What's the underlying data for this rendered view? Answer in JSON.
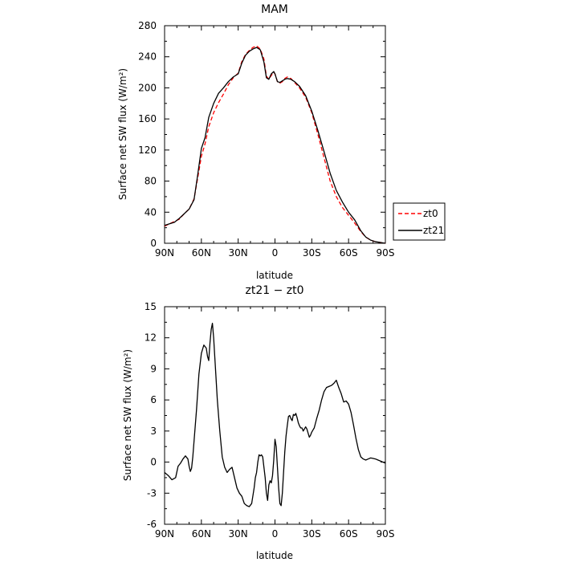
{
  "chart_data": [
    {
      "type": "line",
      "title": "MAM",
      "xlabel": "latitude",
      "ylabel": "Surface net SW flux (W/m²)",
      "xlim": [
        90,
        -90
      ],
      "ylim": [
        0,
        280
      ],
      "x_ticks": [
        90,
        60,
        30,
        0,
        -30,
        -60,
        -90
      ],
      "x_tick_labels": [
        "90N",
        "60N",
        "30N",
        "0",
        "30S",
        "60S",
        "90S"
      ],
      "y_ticks": [
        0,
        40,
        80,
        120,
        160,
        200,
        240,
        280
      ],
      "legend": {
        "position": "right"
      },
      "series": [
        {
          "name": "zt0",
          "color": "#ff0000",
          "dash": "dashed",
          "x": [
            90,
            86,
            82,
            78,
            74,
            70,
            66,
            63,
            60,
            57,
            54,
            50,
            46,
            42,
            38,
            34,
            30,
            27,
            24,
            21,
            18,
            15,
            12,
            9,
            7,
            5,
            3,
            1,
            0,
            -2,
            -4,
            -6,
            -8,
            -10,
            -13,
            -16,
            -20,
            -25,
            -30,
            -35,
            -40,
            -45,
            -50,
            -55,
            -60,
            -65,
            -70,
            -74,
            -78,
            -82,
            -86,
            -90
          ],
          "y": [
            22,
            25,
            28,
            31,
            38,
            44,
            57,
            84,
            112,
            128,
            150,
            168,
            181,
            192,
            204,
            213,
            219,
            234,
            243,
            248,
            252,
            254,
            250,
            237,
            215,
            211,
            216,
            220,
            218,
            208,
            206,
            208,
            212,
            214,
            212,
            207,
            200,
            188,
            168,
            140,
            110,
            80,
            60,
            46,
            36,
            26,
            15,
            8,
            4,
            2,
            1,
            0
          ]
        },
        {
          "name": "zt21",
          "color": "#000000",
          "dash": "solid",
          "x": [
            90,
            86,
            82,
            78,
            74,
            70,
            66,
            63,
            60,
            57,
            54,
            50,
            46,
            42,
            38,
            34,
            30,
            27,
            24,
            21,
            18,
            15,
            12,
            9,
            7,
            5,
            3,
            1,
            0,
            -2,
            -4,
            -6,
            -8,
            -10,
            -13,
            -16,
            -20,
            -25,
            -30,
            -35,
            -40,
            -45,
            -50,
            -55,
            -60,
            -65,
            -70,
            -74,
            -78,
            -82,
            -86,
            -90
          ],
          "y": [
            23,
            25,
            27,
            32,
            38,
            44,
            56,
            88,
            122,
            136,
            162,
            180,
            193,
            200,
            208,
            214,
            218,
            232,
            242,
            247,
            250,
            252,
            249,
            233,
            213,
            211,
            218,
            221,
            218,
            208,
            207,
            209,
            211,
            212,
            211,
            208,
            202,
            190,
            170,
            145,
            118,
            90,
            68,
            53,
            40,
            30,
            16,
            8,
            4,
            2,
            1,
            0
          ]
        }
      ]
    },
    {
      "type": "line",
      "title": "zt21 − zt0",
      "xlabel": "latitude",
      "ylabel": "Surface net SW flux (W/m²)",
      "xlim": [
        90,
        -90
      ],
      "ylim": [
        -6,
        15
      ],
      "x_ticks": [
        90,
        60,
        30,
        0,
        -30,
        -60,
        -90
      ],
      "x_tick_labels": [
        "90N",
        "60N",
        "30N",
        "0",
        "30S",
        "60S",
        "90S"
      ],
      "y_ticks": [
        -6,
        -3,
        0,
        3,
        6,
        9,
        12,
        15
      ],
      "series": [
        {
          "color": "#000000",
          "dash": "solid",
          "x": [
            90,
            87,
            84,
            81,
            79,
            77,
            75,
            73,
            71,
            70,
            69,
            68,
            67,
            66,
            64,
            62,
            60,
            58,
            56,
            55,
            54,
            53,
            52,
            51,
            50,
            49,
            48,
            47,
            45,
            43,
            41,
            39,
            37,
            35,
            33,
            31,
            29,
            27,
            25,
            23,
            21,
            19,
            17,
            16,
            15,
            14,
            13,
            12,
            11,
            10,
            9,
            8,
            7,
            6,
            5,
            4,
            3,
            2,
            1,
            0,
            -1,
            -2,
            -3,
            -4,
            -5,
            -6,
            -7,
            -8,
            -9,
            -10,
            -11,
            -12,
            -13,
            -14,
            -15,
            -16,
            -17,
            -18,
            -19,
            -20,
            -21,
            -22,
            -23,
            -24,
            -25,
            -26,
            -27,
            -28,
            -29,
            -30,
            -31,
            -32,
            -34,
            -36,
            -38,
            -40,
            -42,
            -44,
            -46,
            -48,
            -50,
            -52,
            -54,
            -56,
            -58,
            -60,
            -62,
            -64,
            -66,
            -68,
            -70,
            -72,
            -74,
            -76,
            -78,
            -80,
            -82,
            -84,
            -86,
            -88,
            -90
          ],
          "y": [
            -1.0,
            -1.3,
            -1.7,
            -1.5,
            -0.4,
            -0.1,
            0.3,
            0.6,
            0.3,
            -0.4,
            -0.9,
            -0.6,
            0.5,
            2.0,
            5.0,
            8.5,
            10.5,
            11.3,
            11.0,
            10.2,
            9.8,
            11.5,
            12.8,
            13.4,
            12.0,
            10.0,
            8.0,
            6.0,
            3.0,
            0.5,
            -0.5,
            -1.0,
            -0.7,
            -0.5,
            -1.5,
            -2.5,
            -3.0,
            -3.3,
            -4.0,
            -4.2,
            -4.3,
            -4.0,
            -2.5,
            -1.5,
            -1.0,
            0.0,
            0.7,
            0.6,
            0.7,
            0.5,
            -0.5,
            -1.5,
            -3.0,
            -3.7,
            -2.2,
            -1.8,
            -2.0,
            -1.3,
            0.2,
            2.2,
            1.5,
            -0.5,
            -2.5,
            -4.0,
            -4.2,
            -3.0,
            -1.0,
            1.0,
            2.5,
            3.5,
            4.4,
            4.5,
            4.2,
            4.0,
            4.6,
            4.5,
            4.7,
            4.3,
            3.8,
            3.5,
            3.3,
            3.3,
            3.0,
            3.2,
            3.4,
            3.2,
            2.8,
            2.4,
            2.6,
            2.9,
            3.1,
            3.3,
            4.2,
            5.0,
            6.0,
            6.8,
            7.2,
            7.3,
            7.4,
            7.6,
            7.9,
            7.2,
            6.6,
            5.8,
            5.9,
            5.6,
            4.8,
            3.6,
            2.3,
            1.2,
            0.5,
            0.3,
            0.2,
            0.3,
            0.4,
            0.35,
            0.3,
            0.2,
            0.1,
            0.0,
            -0.1
          ]
        }
      ]
    }
  ]
}
